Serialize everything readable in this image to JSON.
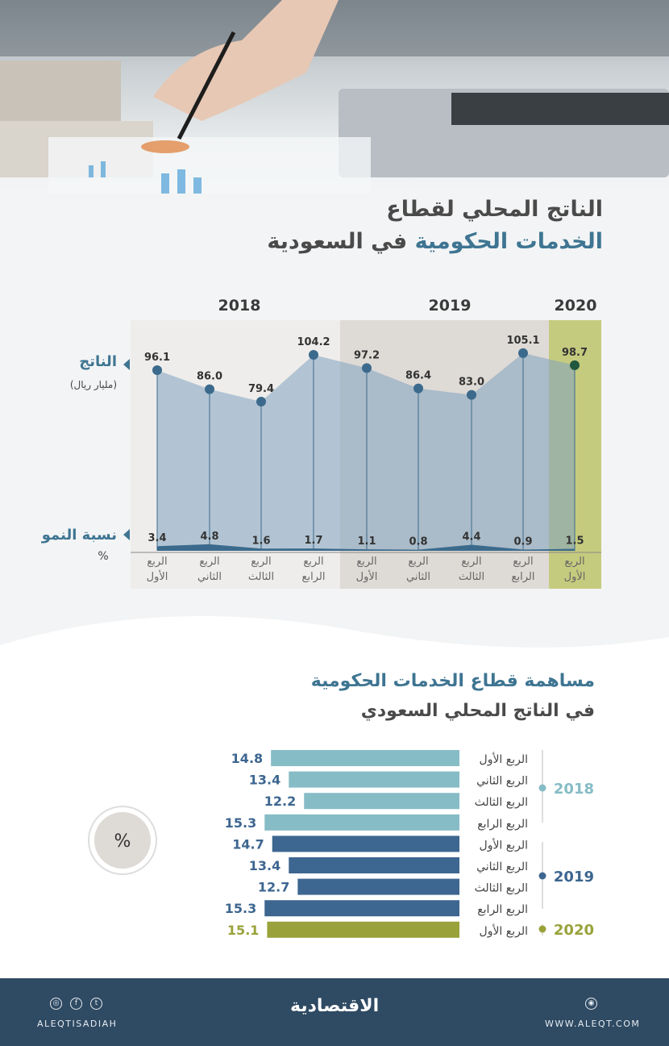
{
  "header": {
    "title_line1": "الناتج المحلي لقطاع",
    "title_line2_highlight": "الخدمات الحكومية",
    "title_line2_rest": "في السعودية"
  },
  "chart_data": [
    {
      "type": "area",
      "years": [
        {
          "label": "2018",
          "quarters": 4,
          "color": "#efedeb"
        },
        {
          "label": "2019",
          "quarters": 4,
          "color": "#dedad6"
        },
        {
          "label": "2020",
          "quarters": 1,
          "color": "#c5cb7e"
        }
      ],
      "categories": [
        "الربع الأول",
        "الربع الثاني",
        "الربع الثالث",
        "الربع الرابع",
        "الربع الأول",
        "الربع الثاني",
        "الربع الثالث",
        "الربع الرابع",
        "الربع الأول"
      ],
      "series": [
        {
          "name": "الناتج",
          "unit": "(مليار ريال)",
          "values": [
            96.1,
            86.0,
            79.4,
            104.2,
            97.2,
            86.4,
            83.0,
            105.1,
            98.7
          ],
          "color": "#a9c0d0"
        },
        {
          "name": "نسبة النمو",
          "unit": "%",
          "values": [
            3.4,
            4.8,
            1.6,
            1.7,
            1.1,
            0.8,
            4.4,
            0.9,
            1.5
          ],
          "color": "#3b6a8c"
        }
      ]
    },
    {
      "type": "bar",
      "orientation": "horizontal",
      "title": "مساهمة قطاع الخدمات الحكومية",
      "subtitle": "في الناتج المحلي السعودي",
      "unit": "%",
      "groups": [
        {
          "year": "2018",
          "color": "#86bcc6",
          "categories": [
            "الربع الأول",
            "الربع الثاني",
            "الربع الثالث",
            "الربع الرابع"
          ],
          "values": [
            14.8,
            13.4,
            12.2,
            15.3
          ]
        },
        {
          "year": "2019",
          "color": "#3d6690",
          "categories": [
            "الربع الأول",
            "الربع الثاني",
            "الربع الثالث",
            "الربع الرابع"
          ],
          "values": [
            14.7,
            13.4,
            12.7,
            15.3
          ]
        },
        {
          "year": "2020",
          "color": "#99a23a",
          "categories": [
            "الربع الأول"
          ],
          "values": [
            15.1
          ]
        }
      ]
    }
  ],
  "footer": {
    "social_handle": "ALEQTISADIAH",
    "logo_text": "الاقتصادية",
    "website": "WWW.ALEQT.COM",
    "icons": [
      "instagram-icon",
      "facebook-icon",
      "twitter-icon",
      "web-icon"
    ]
  }
}
